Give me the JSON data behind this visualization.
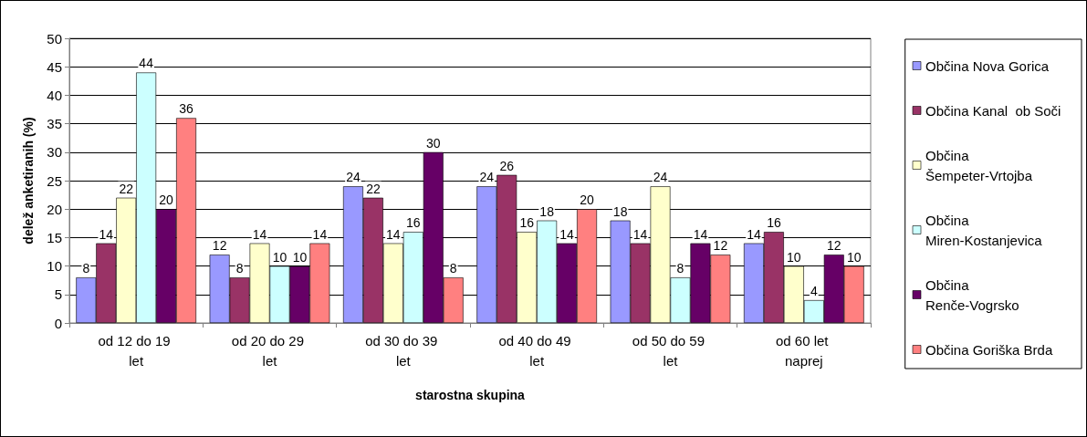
{
  "chart_data": {
    "type": "bar",
    "xlabel": "starostna skupina",
    "ylabel": "delež anketiranih (%)",
    "categories": [
      "od 12 do 19 let",
      "od 20 do 29 let",
      "od 30 do 39 let",
      "od 40 do 49 let",
      "od 50 do 59 let",
      "od 60 let naprej"
    ],
    "series": [
      {
        "name": "Občina Nova Gorica",
        "color": "#9999ff",
        "values": [
          8,
          12,
          24,
          24,
          18,
          14
        ]
      },
      {
        "name": "Občina Kanal  ob Soči",
        "color": "#993366",
        "values": [
          14,
          8,
          22,
          26,
          14,
          16
        ]
      },
      {
        "name": "Občina Šempeter-Vrtojba",
        "color": "#ffffcc",
        "values": [
          22,
          14,
          14,
          16,
          24,
          10
        ]
      },
      {
        "name": "Občina Miren-Kostanjevica",
        "color": "#ccffff",
        "values": [
          44,
          10,
          16,
          18,
          8,
          4
        ]
      },
      {
        "name": "Občina Renče-Vogrsko",
        "color": "#660066",
        "values": [
          20,
          10,
          30,
          14,
          14,
          12
        ]
      },
      {
        "name": "Občina Goriška Brda",
        "color": "#ff8080",
        "values": [
          36,
          14,
          8,
          20,
          12,
          10
        ]
      }
    ],
    "ylim": [
      0,
      50
    ],
    "yticks": [
      0,
      5,
      10,
      15,
      20,
      25,
      30,
      35,
      40,
      45,
      50
    ],
    "grid": "y",
    "legend": "right",
    "data_labels": true
  }
}
